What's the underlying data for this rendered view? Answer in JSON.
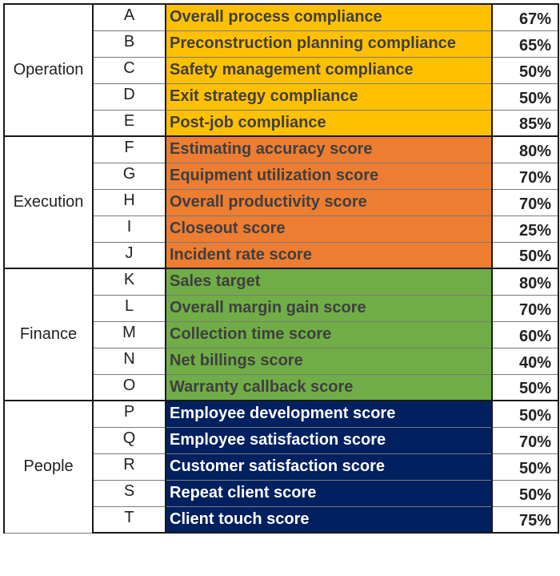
{
  "groups": [
    {
      "category": "Operation",
      "bg_color": "#FFC000",
      "text_color": "#3f3f3f",
      "rows": [
        {
          "letter": "A",
          "metric": "Overall process compliance",
          "percent": "67%"
        },
        {
          "letter": "B",
          "metric": "Preconstruction planning compliance",
          "percent": "65%"
        },
        {
          "letter": "C",
          "metric": "Safety management compliance",
          "percent": "50%"
        },
        {
          "letter": "D",
          "metric": "Exit strategy compliance",
          "percent": "50%"
        },
        {
          "letter": "E",
          "metric": "Post-job compliance",
          "percent": "85%"
        }
      ]
    },
    {
      "category": "Execution",
      "bg_color": "#ED7D31",
      "text_color": "#3f3f3f",
      "rows": [
        {
          "letter": "F",
          "metric": "Estimating accuracy score",
          "percent": "80%"
        },
        {
          "letter": "G",
          "metric": "Equipment utilization score",
          "percent": "70%"
        },
        {
          "letter": "H",
          "metric": "Overall productivity score",
          "percent": "70%"
        },
        {
          "letter": "I",
          "metric": "Closeout score",
          "percent": "25%"
        },
        {
          "letter": "J",
          "metric": "Incident rate score",
          "percent": "50%"
        }
      ]
    },
    {
      "category": "Finance",
      "bg_color": "#70AD47",
      "text_color": "#3f3f3f",
      "rows": [
        {
          "letter": "K",
          "metric": "Sales target",
          "percent": "80%"
        },
        {
          "letter": "L",
          "metric": "Overall margin gain score",
          "percent": "70%"
        },
        {
          "letter": "M",
          "metric": "Collection time score",
          "percent": "60%"
        },
        {
          "letter": "N",
          "metric": "Net billings score",
          "percent": "40%"
        },
        {
          "letter": "O",
          "metric": "Warranty callback score",
          "percent": "50%"
        }
      ]
    },
    {
      "category": "People",
      "bg_color": "#002060",
      "text_color": "#ffffff",
      "rows": [
        {
          "letter": "P",
          "metric": "Employee development score",
          "percent": "50%"
        },
        {
          "letter": "Q",
          "metric": "Employee satisfaction score",
          "percent": "70%"
        },
        {
          "letter": "R",
          "metric": "Customer satisfaction score",
          "percent": "50%"
        },
        {
          "letter": "S",
          "metric": "Repeat client score",
          "percent": "50%"
        },
        {
          "letter": "T",
          "metric": "Client touch score",
          "percent": "75%"
        }
      ]
    }
  ]
}
